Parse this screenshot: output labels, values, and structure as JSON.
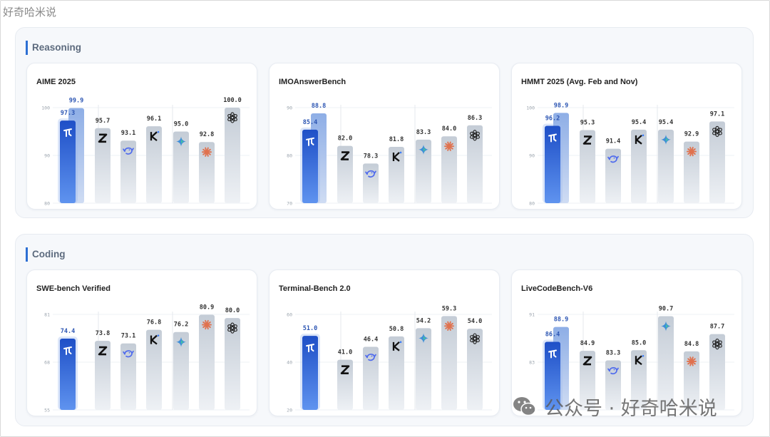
{
  "watermark": {
    "top_text": "好奇哈米说",
    "bottom_text": "公众号 · 好奇哈米说"
  },
  "colors": {
    "highlight_top": "#1e4fc7",
    "highlight_bottom": "#5f93ef",
    "highlight_ghost": "#8eaee6",
    "gray_top": "#c4ccd6",
    "gray_bottom": "#eef1f5",
    "highlight_label": "#2d56b3",
    "gray_label": "#333333"
  },
  "sections": [
    {
      "title": "Reasoning"
    },
    {
      "title": "Coding"
    }
  ],
  "chart_data": [
    {
      "type": "bar",
      "section": "Reasoning",
      "title": "AIME 2025",
      "ylim": [
        80,
        100
      ],
      "yticks": [
        80,
        90,
        100
      ],
      "highlight": {
        "value": 97.3,
        "ghost": 99.9,
        "icon": "glm-logo-icon"
      },
      "bars": [
        {
          "value": 95.7,
          "icon": "zhipu-z-logo-icon"
        },
        {
          "value": 93.1,
          "icon": "deepseek-whale-icon"
        },
        {
          "value": 96.1,
          "icon": "kimi-k-logo-icon"
        },
        {
          "value": 95.0,
          "icon": "gemini-sparkle-icon"
        },
        {
          "value": 92.8,
          "icon": "claude-burst-icon"
        },
        {
          "value": 100.0,
          "icon": "openai-knot-icon"
        }
      ],
      "labels": {
        "highlight": "97.3",
        "ghost": "99.9",
        "bars": [
          "95.7",
          "93.1",
          "96.1",
          "95.0",
          "92.8",
          "100.0"
        ]
      },
      "tick_labels": [
        "80",
        "90",
        "100"
      ]
    },
    {
      "type": "bar",
      "section": "Reasoning",
      "title": "IMOAnswerBench",
      "ylim": [
        70,
        90
      ],
      "yticks": [
        70,
        80,
        90
      ],
      "highlight": {
        "value": 85.4,
        "ghost": 88.8,
        "icon": "glm-logo-icon"
      },
      "bars": [
        {
          "value": 82.0,
          "icon": "zhipu-z-logo-icon"
        },
        {
          "value": 78.3,
          "icon": "deepseek-whale-icon"
        },
        {
          "value": 81.8,
          "icon": "kimi-k-logo-icon"
        },
        {
          "value": 83.3,
          "icon": "gemini-sparkle-icon"
        },
        {
          "value": 84.0,
          "icon": "claude-burst-icon"
        },
        {
          "value": 86.3,
          "icon": "openai-knot-icon"
        }
      ],
      "labels": {
        "highlight": "85.4",
        "ghost": "88.8",
        "bars": [
          "82.0",
          "78.3",
          "81.8",
          "83.3",
          "84.0",
          "86.3"
        ]
      },
      "tick_labels": [
        "70",
        "80",
        "90"
      ]
    },
    {
      "type": "bar",
      "section": "Reasoning",
      "title": "HMMT 2025 (Avg. Feb and Nov)",
      "ylim": [
        80,
        100
      ],
      "yticks": [
        80,
        90,
        100
      ],
      "highlight": {
        "value": 96.2,
        "ghost": 98.9,
        "icon": "glm-logo-icon"
      },
      "bars": [
        {
          "value": 95.3,
          "icon": "zhipu-z-logo-icon"
        },
        {
          "value": 91.4,
          "icon": "deepseek-whale-icon"
        },
        {
          "value": 95.4,
          "icon": "kimi-k-logo-icon"
        },
        {
          "value": 95.4,
          "icon": "gemini-sparkle-icon"
        },
        {
          "value": 92.9,
          "icon": "claude-burst-icon"
        },
        {
          "value": 97.1,
          "icon": "openai-knot-icon"
        }
      ],
      "labels": {
        "highlight": "96.2",
        "ghost": "98.9",
        "bars": [
          "95.3",
          "91.4",
          "95.4",
          "95.4",
          "92.9",
          "97.1"
        ]
      },
      "tick_labels": [
        "80",
        "90",
        "100"
      ]
    },
    {
      "type": "bar",
      "section": "Coding",
      "title": "SWE-bench Verified",
      "ylim": [
        55,
        81
      ],
      "yticks": [
        55,
        68,
        81
      ],
      "highlight": {
        "value": 74.4,
        "ghost": null,
        "icon": "glm-logo-icon"
      },
      "bars": [
        {
          "value": 73.8,
          "icon": "zhipu-z-logo-icon"
        },
        {
          "value": 73.1,
          "icon": "deepseek-whale-icon"
        },
        {
          "value": 76.8,
          "icon": "kimi-k-logo-icon"
        },
        {
          "value": 76.2,
          "icon": "gemini-sparkle-icon"
        },
        {
          "value": 80.9,
          "icon": "claude-burst-icon"
        },
        {
          "value": 80.0,
          "icon": "openai-knot-icon"
        }
      ],
      "labels": {
        "highlight": "74.4",
        "ghost": "",
        "bars": [
          "73.8",
          "73.1",
          "76.8",
          "76.2",
          "80.9",
          "80.0"
        ]
      },
      "tick_labels": [
        "55",
        "68",
        "81"
      ]
    },
    {
      "type": "bar",
      "section": "Coding",
      "title": "Terminal-Bench 2.0",
      "ylim": [
        20,
        60
      ],
      "yticks": [
        20,
        40,
        60
      ],
      "highlight": {
        "value": 51.0,
        "ghost": null,
        "icon": "glm-logo-icon"
      },
      "bars": [
        {
          "value": 41.0,
          "icon": "zhipu-z-logo-icon"
        },
        {
          "value": 46.4,
          "icon": "deepseek-whale-icon"
        },
        {
          "value": 50.8,
          "icon": "kimi-k-logo-icon"
        },
        {
          "value": 54.2,
          "icon": "gemini-sparkle-icon"
        },
        {
          "value": 59.3,
          "icon": "claude-burst-icon"
        },
        {
          "value": 54.0,
          "icon": "openai-knot-icon"
        }
      ],
      "labels": {
        "highlight": "51.0",
        "ghost": "",
        "bars": [
          "41.0",
          "46.4",
          "50.8",
          "54.2",
          "59.3",
          "54.0"
        ]
      },
      "tick_labels": [
        "20",
        "40",
        "60"
      ]
    },
    {
      "type": "bar",
      "section": "Coding",
      "title": "LiveCodeBench-V6",
      "ylim": [
        75,
        91
      ],
      "yticks": [
        75,
        83,
        91
      ],
      "highlight": {
        "value": 86.4,
        "ghost": 88.9,
        "icon": "glm-logo-icon"
      },
      "bars": [
        {
          "value": 84.9,
          "icon": "zhipu-z-logo-icon"
        },
        {
          "value": 83.3,
          "icon": "deepseek-whale-icon"
        },
        {
          "value": 85.0,
          "icon": "kimi-k-logo-icon"
        },
        {
          "value": 90.7,
          "icon": "gemini-sparkle-icon"
        },
        {
          "value": 84.8,
          "icon": "claude-burst-icon"
        },
        {
          "value": 87.7,
          "icon": "openai-knot-icon"
        }
      ],
      "labels": {
        "highlight": "86.4",
        "ghost": "88.9",
        "bars": [
          "84.9",
          "83.3",
          "85.0",
          "90.7",
          "84.8",
          "87.7"
        ]
      },
      "tick_labels": [
        "75",
        "83",
        "91"
      ]
    }
  ]
}
